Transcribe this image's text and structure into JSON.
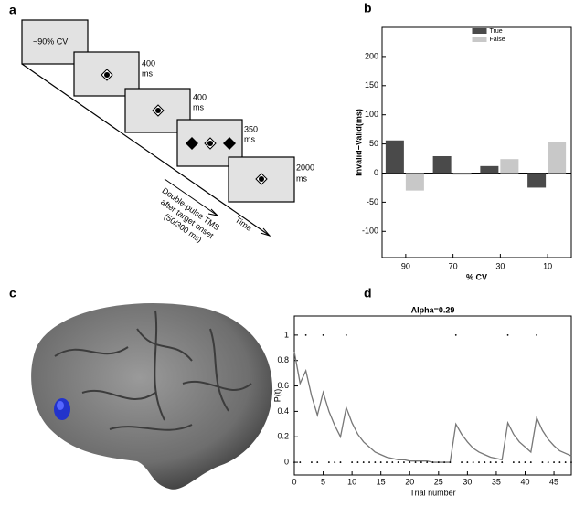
{
  "panel_labels": [
    "a",
    "b",
    "c",
    "d"
  ],
  "diagram": {
    "cue": "~90% CV",
    "durations": [
      {
        "value": "400",
        "unit": "ms"
      },
      {
        "value": "400",
        "unit": "ms"
      },
      {
        "value": "350",
        "unit": "ms"
      },
      {
        "value": "2000",
        "unit": "ms"
      }
    ],
    "tms_label": [
      "Double-pulse TMS",
      "after target onset",
      "(50/300 ms)"
    ],
    "time_label": "Time"
  },
  "chart_data": [
    {
      "type": "bar",
      "categories": [
        "90",
        "70",
        "30",
        "10"
      ],
      "series": [
        {
          "name": "True",
          "color": "#4a4a4a",
          "values": [
            56,
            29,
            12,
            -25
          ]
        },
        {
          "name": "False",
          "color": "#c8c8c8",
          "values": [
            -30,
            -3,
            24,
            54
          ]
        }
      ],
      "ylabel": "Invalid−Valid(ms)",
      "xlabel": "% CV",
      "ylim": [
        -145,
        250
      ],
      "yticks": [
        -100,
        -50,
        0,
        50,
        100,
        150,
        200
      ],
      "legend": "top"
    },
    {
      "type": "line",
      "title": "Alpha=0.29",
      "x": [
        0,
        1,
        2,
        3,
        4,
        5,
        6,
        7,
        8,
        9,
        10,
        11,
        12,
        13,
        14,
        15,
        16,
        17,
        18,
        19,
        20,
        21,
        22,
        23,
        24,
        25,
        26,
        27,
        28,
        29,
        30,
        31,
        32,
        33,
        34,
        35,
        36,
        37,
        38,
        39,
        40,
        41,
        42,
        43,
        44,
        45,
        46,
        47,
        48
      ],
      "series": [
        {
          "color": "#777777",
          "values": [
            0.87,
            0.62,
            0.72,
            0.52,
            0.37,
            0.55,
            0.4,
            0.29,
            0.2,
            0.43,
            0.31,
            0.22,
            0.16,
            0.12,
            0.08,
            0.06,
            0.04,
            0.03,
            0.02,
            0.02,
            0.01,
            0.01,
            0.01,
            0.01,
            0,
            0,
            0,
            0,
            0.3,
            0.22,
            0.16,
            0.11,
            0.08,
            0.06,
            0.04,
            0.03,
            0.02,
            0.31,
            0.22,
            0.16,
            0.12,
            0.08,
            0.35,
            0.25,
            0.18,
            0.13,
            0.09,
            0.07,
            0.05
          ]
        }
      ],
      "outcomes": [
        0,
        0,
        1,
        0,
        0,
        1,
        0,
        0,
        0,
        1,
        0,
        0,
        0,
        0,
        0,
        0,
        0,
        0,
        0,
        0,
        0,
        0,
        0,
        0,
        0,
        0,
        0,
        0,
        1,
        0,
        0,
        0,
        0,
        0,
        0,
        0,
        0,
        1,
        0,
        0,
        0,
        0,
        1,
        0,
        0,
        0,
        0,
        0,
        0
      ],
      "xlim": [
        0,
        48
      ],
      "ylim": [
        -0.1,
        1.15
      ],
      "xticks": [
        0,
        5,
        10,
        15,
        20,
        25,
        30,
        35,
        40,
        45
      ],
      "yticks": [
        0,
        0.2,
        0.4,
        0.6,
        0.8,
        1
      ],
      "xlabel": "Trial number",
      "ylabel": "P(t)"
    }
  ]
}
